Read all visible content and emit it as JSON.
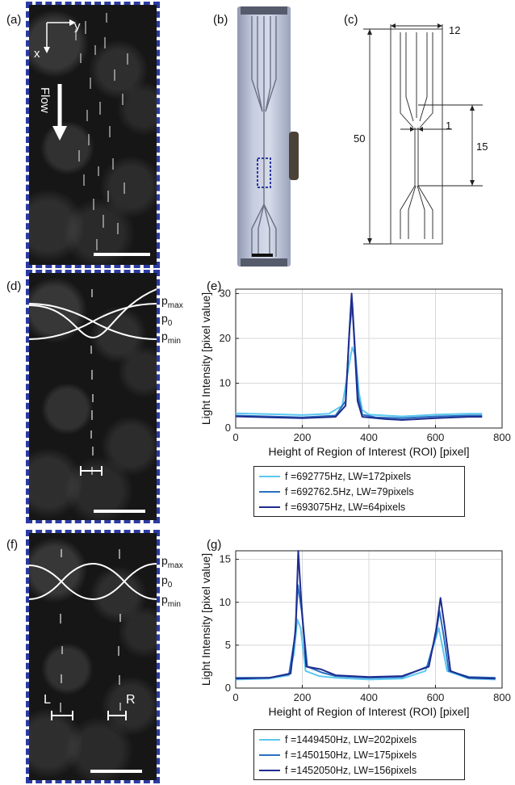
{
  "panels": {
    "a": {
      "label": "(a)",
      "axis_x": "x",
      "axis_y": "y",
      "flow": "Flow"
    },
    "b": {
      "label": "(b)"
    },
    "c": {
      "label": "(c)",
      "dim_width": "12",
      "dim_length": "50",
      "dim_channel": "1",
      "dim_channel_length": "15"
    },
    "d": {
      "label": "(d)",
      "p_max": "p",
      "p_max_sub": "max",
      "p_0": "p",
      "p_0_sub": "0",
      "p_min": "p",
      "p_min_sub": "min"
    },
    "e": {
      "label": "(e)"
    },
    "f": {
      "label": "(f)",
      "p_max": "p",
      "p_max_sub": "max",
      "p_0": "p",
      "p_0_sub": "0",
      "p_min": "p",
      "p_min_sub": "min",
      "left_marker": "L",
      "right_marker": "R"
    },
    "g": {
      "label": "(g)"
    }
  },
  "colors": {
    "light": "#5bc8f0",
    "mid": "#2a70c0",
    "dark": "#1e2c8e",
    "frame": "#2b3aa0"
  },
  "chart_data": [
    {
      "type": "line",
      "panel": "e",
      "xlabel": "Height of Region of Interest (ROI) [pixel]",
      "ylabel": "Light Intensity [pixel value]",
      "xlim": [
        0,
        800
      ],
      "ylim": [
        0,
        31
      ],
      "xticks": [
        "0",
        "200",
        "400",
        "600",
        "800"
      ],
      "yticks": [
        "0",
        "10",
        "20",
        "30"
      ],
      "grid": true,
      "legend_position": "bottom",
      "series": [
        {
          "name": "f =692775Hz, LW=172pixels",
          "color": "#5bc8f0",
          "x": [
            0,
            100,
            200,
            280,
            320,
            340,
            350,
            360,
            370,
            380,
            400,
            500,
            600,
            700,
            740
          ],
          "y": [
            3.3,
            3.1,
            2.9,
            3.2,
            5,
            14,
            18,
            16,
            8,
            4,
            3,
            2.6,
            3.0,
            3.2,
            3.2
          ]
        },
        {
          "name": "f =692762.5Hz, LW=79pixels",
          "color": "#2a70c0",
          "x": [
            0,
            100,
            200,
            300,
            330,
            342,
            350,
            358,
            368,
            380,
            420,
            500,
            600,
            700,
            740
          ],
          "y": [
            2.8,
            2.6,
            2.4,
            2.8,
            6,
            22,
            28,
            18,
            7,
            3,
            2.4,
            2.2,
            2.6,
            2.8,
            2.8
          ]
        },
        {
          "name": "f =693075Hz, LW=64pixels",
          "color": "#1e2c8e",
          "x": [
            0,
            100,
            200,
            300,
            330,
            340,
            348,
            356,
            366,
            380,
            450,
            500,
            600,
            700,
            740
          ],
          "y": [
            2.6,
            2.4,
            2.2,
            2.5,
            5,
            20,
            30,
            20,
            6,
            2.5,
            2.0,
            1.8,
            2.2,
            2.5,
            2.5
          ]
        }
      ]
    },
    {
      "type": "line",
      "panel": "g",
      "xlabel": "Height of Region of Interest (ROI) [pixel]",
      "ylabel": "Light Intensity [pixel value]",
      "xlim": [
        0,
        800
      ],
      "ylim": [
        0,
        16
      ],
      "xticks": [
        "0",
        "200",
        "400",
        "600",
        "800"
      ],
      "yticks": [
        "0",
        "5",
        "10",
        "15"
      ],
      "grid": true,
      "legend_position": "bottom",
      "series": [
        {
          "name": "f =1449450Hz, LW=202pixels",
          "color": "#5bc8f0",
          "x": [
            0,
            100,
            160,
            175,
            185,
            195,
            210,
            250,
            300,
            400,
            500,
            570,
            595,
            610,
            620,
            635,
            700,
            780
          ],
          "y": [
            1.0,
            1.1,
            1.5,
            4,
            8,
            7,
            2,
            1.4,
            1.2,
            1.0,
            1.1,
            2,
            5,
            7,
            5,
            2,
            1.1,
            1.0
          ]
        },
        {
          "name": "f =1450150Hz, LW=175pixels",
          "color": "#2a70c0",
          "x": [
            0,
            100,
            160,
            178,
            187,
            198,
            215,
            260,
            300,
            400,
            500,
            575,
            600,
            612,
            625,
            640,
            700,
            780
          ],
          "y": [
            1.2,
            1.2,
            1.6,
            6,
            12,
            9,
            2.5,
            1.8,
            1.4,
            1.2,
            1.3,
            2.5,
            6,
            9,
            6,
            2,
            1.3,
            1.2
          ]
        },
        {
          "name": "f =1452050Hz, LW=156pixels",
          "color": "#1e2c8e",
          "x": [
            0,
            100,
            165,
            180,
            188,
            197,
            212,
            255,
            300,
            400,
            500,
            580,
            603,
            615,
            628,
            645,
            700,
            780
          ],
          "y": [
            1.1,
            1.2,
            1.7,
            7,
            16,
            10,
            2.5,
            2.2,
            1.5,
            1.3,
            1.4,
            2.5,
            7,
            10.5,
            7,
            2,
            1.2,
            1.1
          ]
        }
      ]
    }
  ]
}
